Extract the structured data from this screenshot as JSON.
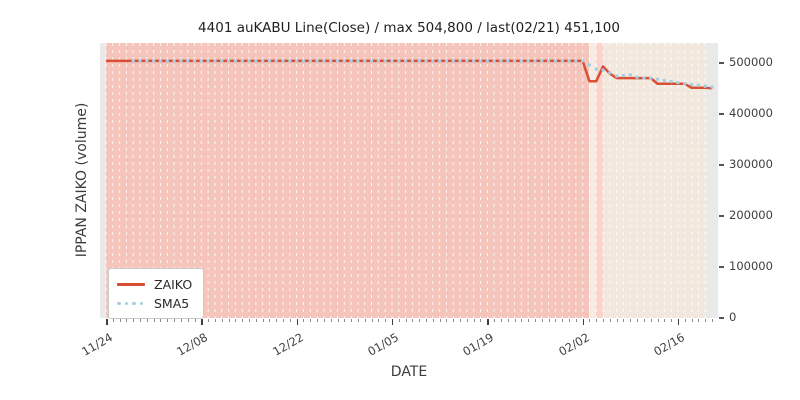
{
  "title": "4401 auKABU Line(Close) / max 504,800 / last(02/21) 451,100",
  "xlabel": "DATE",
  "ylabel": "IPPAN ZAIKO (volume)",
  "legend": {
    "items": [
      {
        "label": "ZAIKO",
        "color": "#d94f35",
        "style": "solid"
      },
      {
        "label": "SMA5",
        "color": "#a6cee3",
        "style": "dotted"
      }
    ]
  },
  "colors": {
    "zaiko_line": "#d94f35",
    "sma5_dots": "#a6cee3",
    "plot_background": "#e9e9e9",
    "band_pink": "#f5c5bb",
    "band_lightest": "#f7ece5",
    "band_medium_pink": "#f9d4ca",
    "band_cream": "#f2e8de",
    "gridline": "#ffffff",
    "text": "#3f3f3f"
  },
  "chart_data": {
    "type": "line",
    "title": "4401 auKABU Line(Close) / max 504,800 / last(02/21) 451,100",
    "xlabel": "DATE",
    "ylabel": "IPPAN ZAIKO (volume)",
    "ylim": [
      0,
      540000
    ],
    "yticks": [
      0,
      100000,
      200000,
      300000,
      400000,
      500000
    ],
    "ytick_labels": [
      "0",
      "100000",
      "200000",
      "300000",
      "400000",
      "500000"
    ],
    "xticks_major": [
      {
        "day": 0,
        "label": "11/24"
      },
      {
        "day": 14,
        "label": "12/08"
      },
      {
        "day": 28,
        "label": "12/22"
      },
      {
        "day": 42,
        "label": "01/05"
      },
      {
        "day": 56,
        "label": "01/19"
      },
      {
        "day": 70,
        "label": "02/02"
      },
      {
        "day": 84,
        "label": "02/16"
      }
    ],
    "max_value": 504800,
    "last": {
      "date": "02/21",
      "value": 451100
    },
    "dates": [
      "11/24",
      "11/25",
      "11/26",
      "11/27",
      "11/28",
      "11/29",
      "11/30",
      "12/01",
      "12/02",
      "12/03",
      "12/04",
      "12/05",
      "12/06",
      "12/07",
      "12/08",
      "12/09",
      "12/10",
      "12/11",
      "12/12",
      "12/13",
      "12/14",
      "12/15",
      "12/16",
      "12/17",
      "12/18",
      "12/19",
      "12/20",
      "12/21",
      "12/22",
      "12/23",
      "12/24",
      "12/25",
      "12/26",
      "12/27",
      "12/28",
      "12/29",
      "12/30",
      "12/31",
      "01/01",
      "01/02",
      "01/03",
      "01/04",
      "01/05",
      "01/06",
      "01/07",
      "01/08",
      "01/09",
      "01/10",
      "01/11",
      "01/12",
      "01/13",
      "01/14",
      "01/15",
      "01/16",
      "01/17",
      "01/18",
      "01/19",
      "01/20",
      "01/21",
      "01/22",
      "01/23",
      "01/24",
      "01/25",
      "01/26",
      "01/27",
      "01/28",
      "01/29",
      "01/30",
      "01/31",
      "02/01",
      "02/02",
      "02/03",
      "02/04",
      "02/05",
      "02/06",
      "02/07",
      "02/08",
      "02/09",
      "02/10",
      "02/11",
      "02/12",
      "02/13",
      "02/14",
      "02/15",
      "02/16",
      "02/17",
      "02/18",
      "02/19",
      "02/20",
      "02/21"
    ],
    "series": [
      {
        "name": "ZAIKO",
        "values": [
          504800,
          504800,
          504800,
          504800,
          504800,
          504800,
          504800,
          504800,
          504800,
          504800,
          504800,
          504800,
          504800,
          504800,
          504800,
          504800,
          504800,
          504800,
          504800,
          504800,
          504800,
          504800,
          504800,
          504800,
          504800,
          504800,
          504800,
          504800,
          504800,
          504800,
          504800,
          504800,
          504800,
          504800,
          504800,
          504800,
          504800,
          504800,
          504800,
          504800,
          504800,
          504800,
          504800,
          504800,
          504800,
          504800,
          504800,
          504800,
          504800,
          504800,
          504800,
          504800,
          504800,
          504800,
          504800,
          504800,
          504800,
          504800,
          504800,
          504800,
          504800,
          504800,
          504800,
          504800,
          504800,
          504800,
          504800,
          504800,
          504800,
          504800,
          504800,
          465000,
          465000,
          494000,
          480000,
          471000,
          471000,
          471000,
          471000,
          471000,
          471000,
          460000,
          460000,
          460000,
          460000,
          460000,
          452000,
          452000,
          452000,
          451100
        ]
      },
      {
        "name": "SMA5",
        "derived": "5-day moving average of ZAIKO"
      }
    ],
    "bands": [
      {
        "from_day": 0,
        "to_day": 71,
        "color": "#f5c5bb"
      },
      {
        "from_day": 71,
        "to_day": 72,
        "color": "#f7ece5"
      },
      {
        "from_day": 72,
        "to_day": 73,
        "color": "#f9d4ca"
      },
      {
        "from_day": 73,
        "to_day": 88,
        "color": "#f2e8de"
      }
    ],
    "grid": "vertical white dashed, one per day",
    "legend_position": "lower left"
  }
}
